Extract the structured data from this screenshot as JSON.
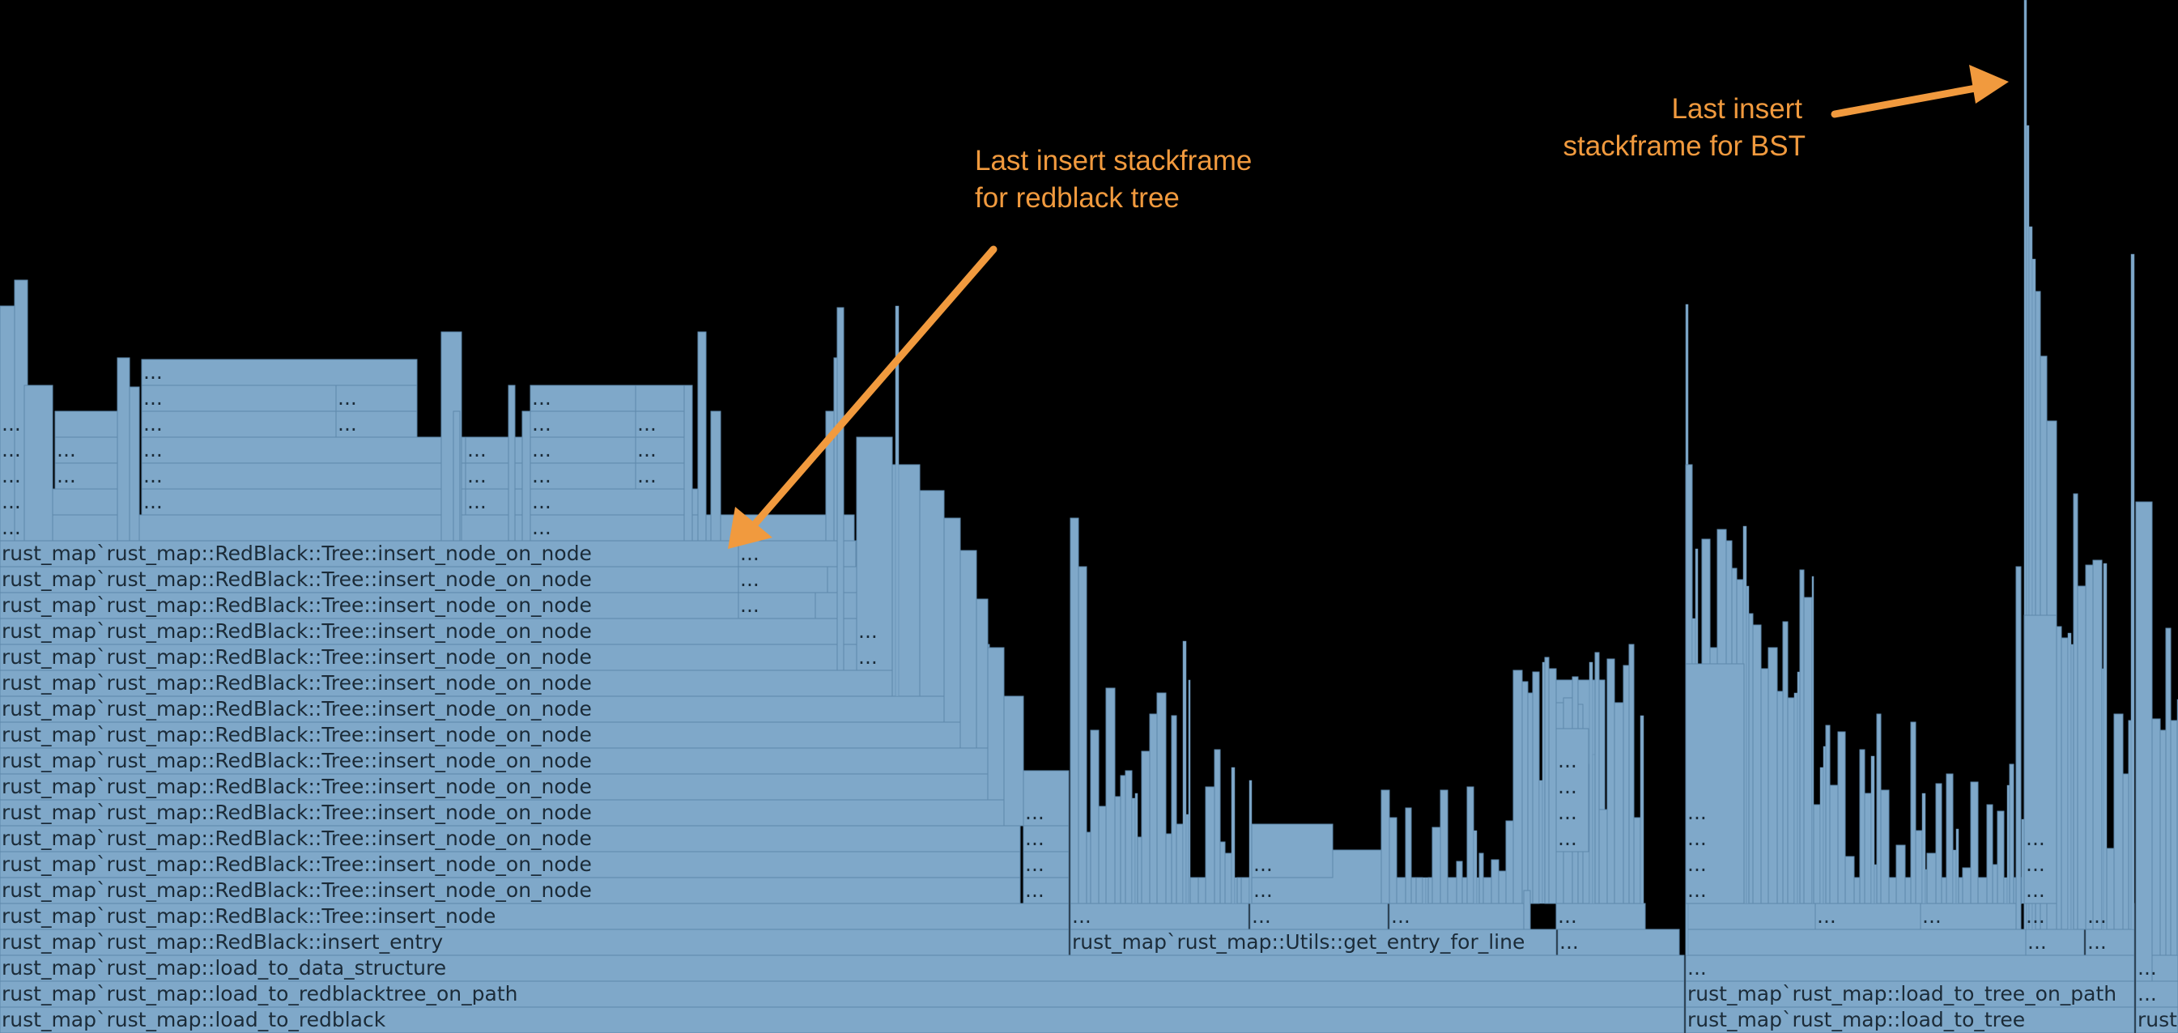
{
  "colors": {
    "background": "#000000",
    "frame_fill": "#7fa8c9",
    "frame_stroke": "#5e88ab",
    "frame_text": "#1b2b38",
    "annotation": "#f19a3e"
  },
  "annotations": {
    "redblack": {
      "line1": "Last  insert stackframe",
      "line2": "for redblack tree"
    },
    "bst": {
      "line1": "Last  insert",
      "line2": "stackframe for BST"
    }
  },
  "ellipsis": "...",
  "left_stack": {
    "bottom_labels": [
      "rust_map`rust_map::load_to_redblack",
      "rust_map`rust_map::load_to_redblacktree_on_path",
      "rust_map`rust_map::load_to_data_structure",
      "rust_map`rust_map::RedBlack::insert_entry",
      "rust_map`rust_map::RedBlack::Tree::insert_node"
    ],
    "repeated_label": "rust_map`rust_map::RedBlack::Tree::insert_node_on_node",
    "repeated_count": 14,
    "utils_label": "rust_map`rust_map::Utils::get_entry_for_line"
  },
  "right_stack": {
    "bottom_labels": [
      "rust_map`rust_map::load_to_tree",
      "rust_map`rust_map::load_to_tree_on_path"
    ],
    "truncated_label": "rust"
  }
}
